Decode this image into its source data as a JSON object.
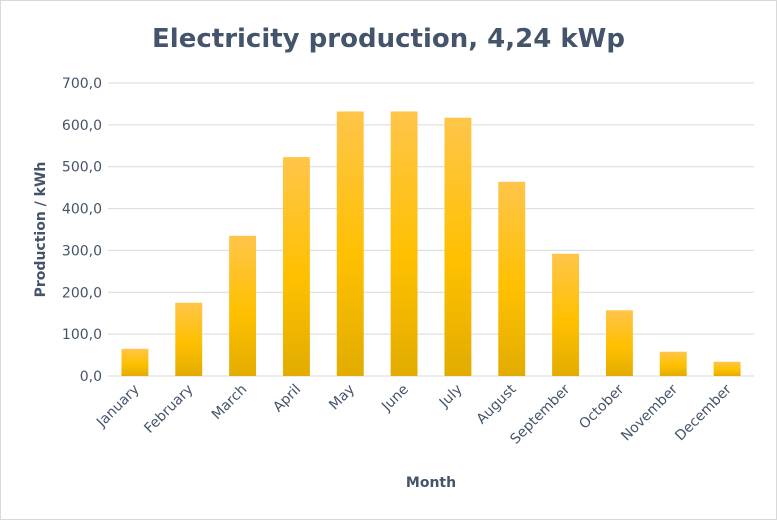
{
  "chart_data": {
    "type": "bar",
    "title": "Electricity production, 4,24 kWp",
    "xlabel": "Month",
    "ylabel": "Production / kWh",
    "categories": [
      "January",
      "February",
      "March",
      "April",
      "May",
      "June",
      "July",
      "August",
      "September",
      "October",
      "November",
      "December"
    ],
    "values": [
      65,
      175,
      335,
      523,
      632,
      632,
      617,
      464,
      292,
      157,
      58,
      34
    ],
    "ylim": [
      0,
      700
    ],
    "yticks": [
      "0,0",
      "100,0",
      "200,0",
      "300,0",
      "400,0",
      "500,0",
      "600,0",
      "700,0"
    ],
    "grid": true,
    "legend": "none",
    "colors": {
      "bar_top": "#ffc54a",
      "bar_mid": "#ffc000",
      "bar_bottom": "#e2ac00",
      "grid": "#d9d9d9",
      "text": "#44546a"
    }
  }
}
